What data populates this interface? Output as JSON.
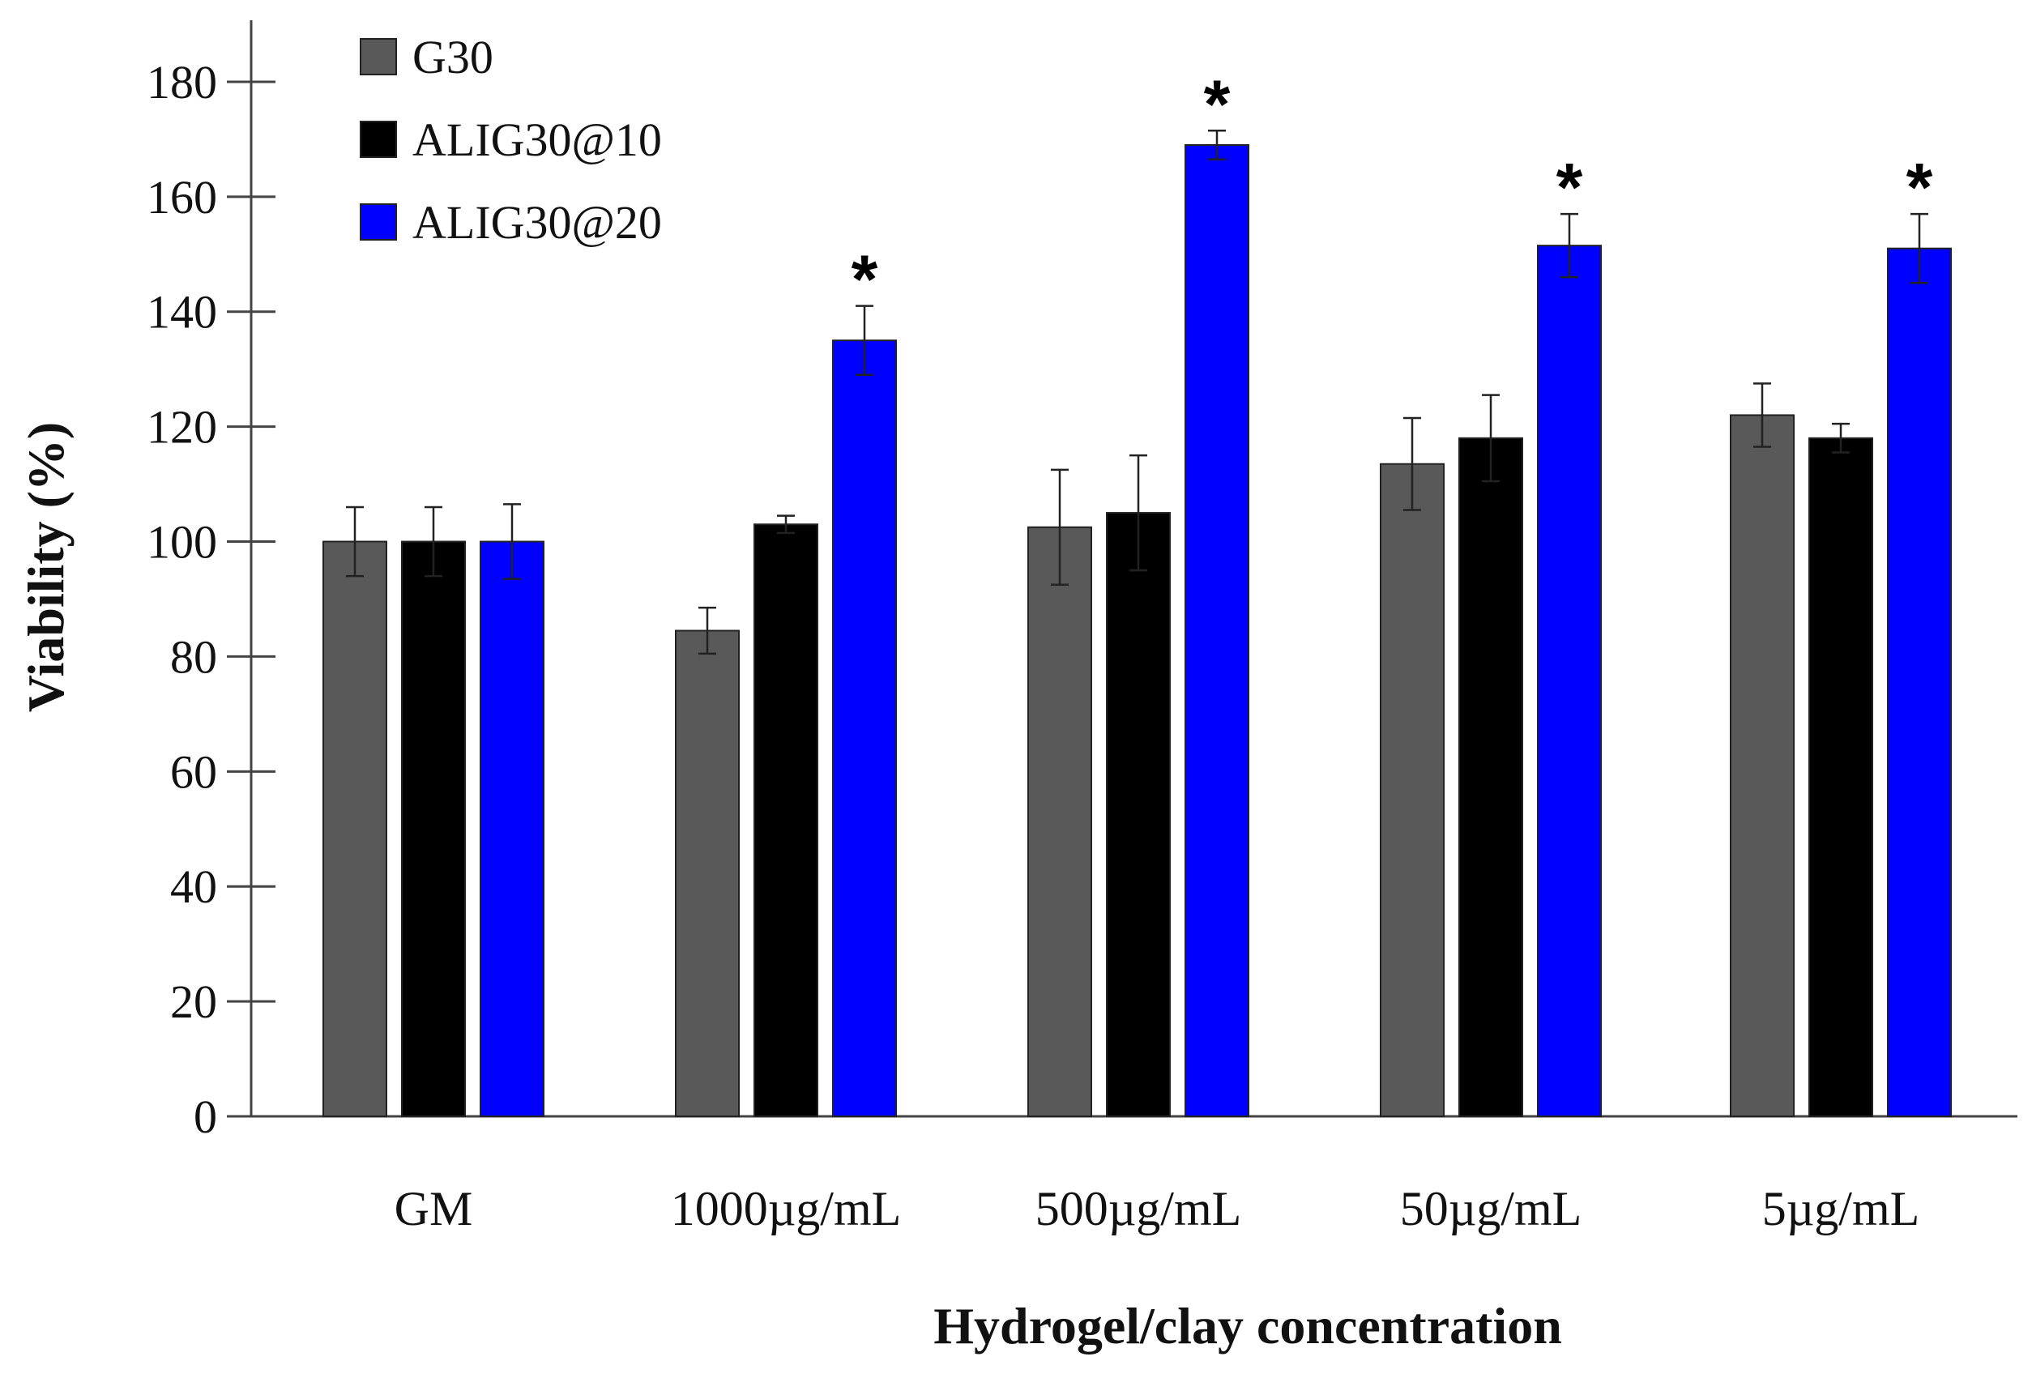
{
  "chart_data": {
    "type": "bar",
    "title": "",
    "xlabel": "Hydrogel/clay concentration",
    "ylabel": "Viability (%)",
    "ylim": [
      0,
      190
    ],
    "yticks": [
      0,
      20,
      40,
      60,
      80,
      100,
      120,
      140,
      160,
      180
    ],
    "grid": false,
    "legend_position": "top-left",
    "categories": [
      "GM",
      "1000µg/mL",
      "500µg/mL",
      "50µg/mL",
      "5µg/mL"
    ],
    "series": [
      {
        "name": "G30",
        "color": "#595959",
        "values": [
          100,
          84.5,
          102.5,
          113.5,
          122
        ],
        "errors": [
          6,
          4,
          10,
          8,
          5.5
        ]
      },
      {
        "name": "ALIG30@10",
        "color": "#000000",
        "values": [
          100,
          103,
          105,
          118,
          118
        ],
        "errors": [
          6,
          1.5,
          10,
          7.5,
          2.5
        ]
      },
      {
        "name": "ALIG30@20",
        "color": "#0000ff",
        "values": [
          100,
          135,
          169,
          151.5,
          151
        ],
        "errors": [
          6.5,
          6,
          2.5,
          5.5,
          6
        ]
      }
    ],
    "significance": [
      {
        "series": 2,
        "category": 1,
        "mark": "*"
      },
      {
        "series": 2,
        "category": 2,
        "mark": "*"
      },
      {
        "series": 2,
        "category": 3,
        "mark": "*"
      },
      {
        "series": 2,
        "category": 4,
        "mark": "*"
      }
    ]
  }
}
